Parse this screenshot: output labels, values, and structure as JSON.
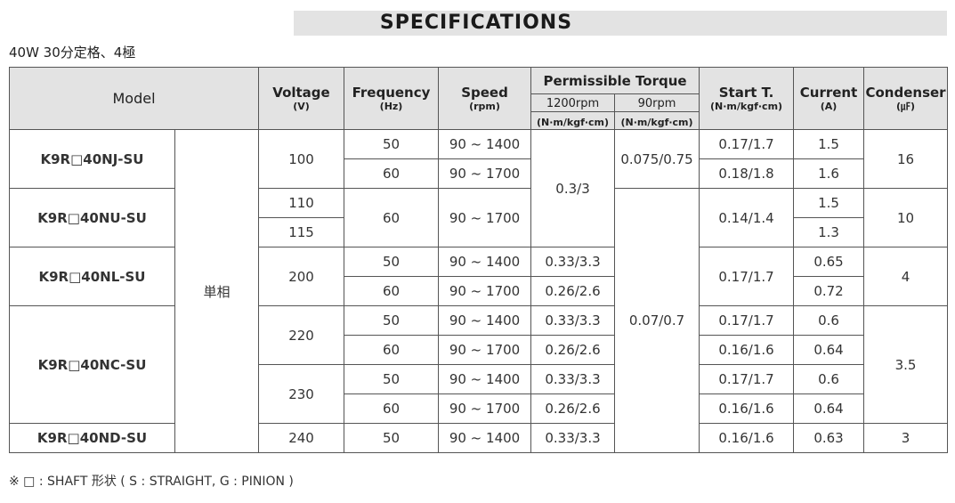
{
  "title": "SPECIFICATIONS",
  "subtitle": "40W 30分定格、4極",
  "header": {
    "model": "Model",
    "voltage": "Voltage",
    "voltage_unit": "(V)",
    "frequency": "Frequency",
    "frequency_unit": "(Hz)",
    "speed": "Speed",
    "speed_unit": "(rpm)",
    "torque": "Permissible Torque",
    "torque_1200": "1200rpm",
    "torque_1200_unit": "(N·m/kgf·cm)",
    "torque_90": "90rpm",
    "torque_90_unit": "(N·m/kgf·cm)",
    "start": "Start T.",
    "start_unit": "(N·m/kgf·cm)",
    "current": "Current",
    "current_unit": "(A)",
    "condenser": "Condenser",
    "condenser_unit": "(㎌)"
  },
  "models": [
    "K9R□40NJ-SU",
    "K9R□40NU-SU",
    "K9R□40NL-SU",
    "K9R□40NC-SU",
    "K9R□40ND-SU"
  ],
  "phase": "単相",
  "voltage": [
    "100",
    "110",
    "115",
    "200",
    "220",
    "230",
    "240"
  ],
  "frequency": [
    "50",
    "60",
    "60",
    "50",
    "60",
    "50",
    "60",
    "50",
    "60",
    "50"
  ],
  "speed": [
    "90 ~ 1400",
    "90 ~ 1700",
    "90 ~ 1700",
    "90 ~ 1400",
    "90 ~ 1700",
    "90 ~ 1400",
    "90 ~ 1700",
    "90 ~ 1400",
    "90 ~ 1700",
    "90 ~ 1400"
  ],
  "torque_1200": [
    "0.3/3",
    "0.33/3.3",
    "0.26/2.6",
    "0.33/3.3",
    "0.26/2.6",
    "0.33/3.3",
    "0.26/2.6",
    "0.33/3.3"
  ],
  "torque_90": [
    "0.075/0.75",
    "0.07/0.7"
  ],
  "start_torque": [
    "0.17/1.7",
    "0.18/1.8",
    "0.14/1.4",
    "0.17/1.7",
    "0.17/1.7",
    "0.16/1.6",
    "0.17/1.7",
    "0.16/1.6",
    "0.16/1.6"
  ],
  "current": [
    "1.5",
    "1.6",
    "1.5",
    "1.3",
    "0.65",
    "0.72",
    "0.6",
    "0.64",
    "0.6",
    "0.64",
    "0.63"
  ],
  "condenser": [
    "16",
    "10",
    "4",
    "3.5",
    "3"
  ],
  "footnote": "※ □ : SHAFT 形状 ( S : STRAIGHT, G : PINION )"
}
